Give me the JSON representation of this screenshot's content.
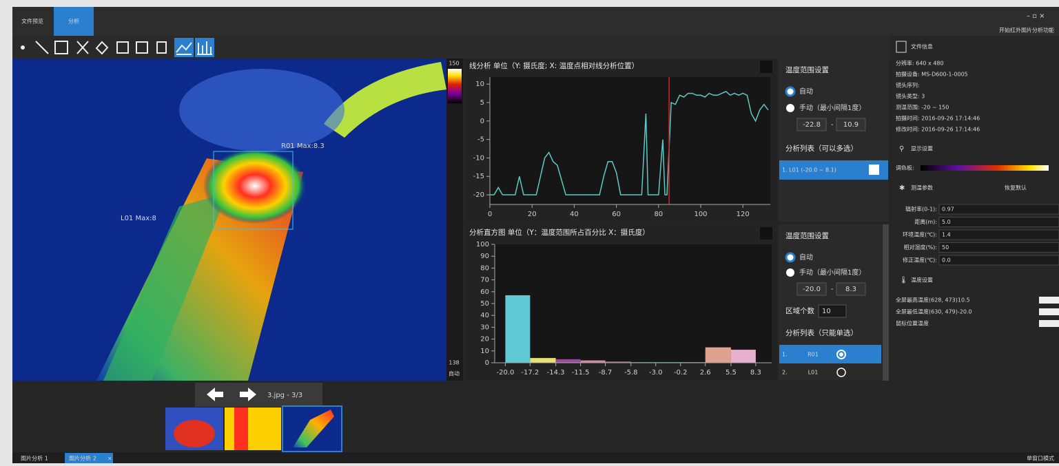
{
  "tabs": [
    "文件预览",
    "分析"
  ],
  "window_hint": "开始红外图片分析功能",
  "image": {
    "overlays": [
      "R01 Max:8.3",
      "L01 Max:8"
    ],
    "scale_max": "150",
    "scale_min": "138",
    "scale_mode": "自动"
  },
  "navigator": {
    "file": "3.jpg - 3/3"
  },
  "chart_data": [
    {
      "type": "line",
      "title": "线分析 单位（Y: 摄氏度; X: 温度点相对线分析位置）",
      "x": [
        0,
        2,
        4,
        6,
        8,
        10,
        12,
        14,
        16,
        18,
        20,
        22,
        24,
        26,
        28,
        30,
        32,
        34,
        36,
        38,
        40,
        42,
        44,
        46,
        48,
        50,
        52,
        54,
        56,
        58,
        60,
        62,
        64,
        66,
        68,
        70,
        72,
        74,
        75,
        76,
        78,
        80,
        82,
        83,
        84,
        86,
        88,
        90,
        92,
        94,
        96,
        98,
        100,
        102,
        104,
        106,
        108,
        110,
        112,
        114,
        116,
        118,
        120,
        122,
        124,
        126,
        128,
        130,
        132
      ],
      "series": [
        {
          "color": "#5fc9c6",
          "values": [
            -20,
            -20,
            -18,
            -20,
            -20,
            -20,
            -20,
            -15,
            -20,
            -20,
            -20,
            -20,
            -15,
            -10,
            -8.5,
            -11,
            -12,
            -16,
            -20,
            -20,
            -20,
            -20,
            -20,
            -20,
            -20,
            -20,
            -20,
            -15,
            -11,
            -11,
            -14,
            -20,
            -20,
            -20,
            -20,
            -20,
            -20,
            2,
            -20,
            -20,
            -20,
            -20,
            -5,
            -20,
            -20,
            5,
            4.5,
            7,
            6.5,
            7.5,
            7.5,
            7,
            7,
            6.5,
            7.5,
            7,
            7,
            7.5,
            8,
            7,
            7.5,
            7,
            7.5,
            7,
            2,
            0,
            3,
            4.5,
            3
          ]
        }
      ],
      "cursor": {
        "x": 85,
        "color": "#e02020"
      },
      "xlim": [
        0,
        133
      ],
      "ylim": [
        -22.6,
        11.9
      ],
      "xticks": [
        0,
        20,
        40,
        60,
        80,
        100,
        120
      ],
      "yticks": [
        10,
        5,
        0,
        -5,
        -10,
        -15,
        -20
      ],
      "grid": false
    },
    {
      "type": "histogram",
      "title": "分析直方图 单位（Y：温度范围所占百分比  X：摄氏度）",
      "bins": [
        -20,
        -17.2,
        -14.3,
        -11.5,
        -8.7,
        -5.8,
        -3,
        -0.2,
        2.6,
        5.5,
        8.3
      ],
      "values": [
        57,
        4,
        3,
        2,
        1,
        0.5,
        0.5,
        0.5,
        13,
        11
      ],
      "colors": [
        "#5fc9d6",
        "#e8e070",
        "#9a4a9a",
        "#d08aa0",
        "#b07070",
        "#70a0a0",
        "#60a0b0",
        "#80a090",
        "#e0a090",
        "#e8b0d0"
      ],
      "xlim": [
        -21.2,
        10.1
      ],
      "ylim": [
        0,
        100
      ],
      "xticks": [
        {
          "value": -20,
          "label": "-20.0"
        },
        -17.2,
        -14.3,
        -11.5,
        -8.7,
        -5.8,
        {
          "value": -3,
          "label": "-3.0"
        },
        -0.2,
        2.6,
        5.5,
        8.3
      ],
      "yticks": [
        0,
        10,
        20,
        30,
        40,
        50,
        60,
        70,
        80,
        90,
        100
      ]
    }
  ],
  "line_settings": {
    "range_title": "温度范围设置",
    "auto": "自动",
    "manual": "手动（最小间隔1度）",
    "min": "-22.8",
    "dash": "-",
    "max": "10.9",
    "list_title": "分析列表（可以多选）",
    "item": "1.  L01 (-20.0 ~ 8.1)"
  },
  "hist_settings": {
    "range_title": "温度范围设置",
    "auto": "自动",
    "manual": "手动（最小间隔1度）",
    "min": "-20.0",
    "dash": "-",
    "max": "8.3",
    "count_label": "区域个数",
    "count": "10",
    "list_title": "分析列表（只能单选）",
    "items": [
      [
        "1.",
        "R01"
      ],
      [
        "2.",
        "L01"
      ]
    ]
  },
  "info_panel": {
    "file_title": "文件信息",
    "file_rows": [
      "分辨率: 640 x 480",
      "拍摄设备: MS-D600-1-0005",
      "镜头序列:",
      "镜头类型: 3",
      "测温范围: -20 ~ 150",
      "拍摄时间: 2016-09-26 17:14:46",
      "修改时间: 2016-09-26 17:14:46"
    ],
    "display_title": "显示设置",
    "palette": "调色板:",
    "params_title": "测温参数",
    "reset": "恢复默认",
    "params": [
      [
        "辐射率(0-1):",
        "0.97"
      ],
      [
        "距离(m):",
        "5.0"
      ],
      [
        "环境温度(℃):",
        "1.4"
      ],
      [
        "相对湿度(%):",
        "50"
      ],
      [
        "修正温度(℃):",
        "0.0"
      ]
    ],
    "temp_title": "温度设置",
    "temp_rows": [
      "全屏最高温度(628, 473)10.5",
      "全屏最低温度(630, 479)-20.0",
      "鼠标位置温度"
    ]
  },
  "status_tabs": [
    "图片分析 1",
    "图片分析 2"
  ],
  "window_mode": "单窗口模式"
}
